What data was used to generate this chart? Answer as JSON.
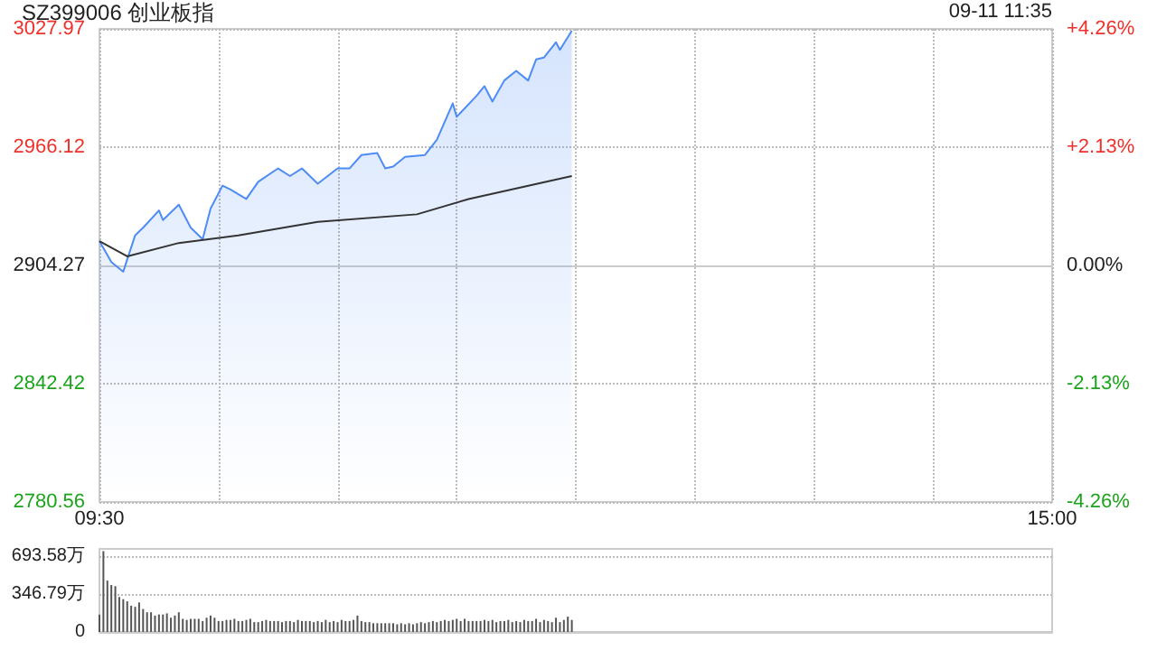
{
  "chart_data": [
    {
      "type": "area",
      "title": "SZ399006 创业板指",
      "annotations": [
        "09-11 11:35"
      ],
      "categories": [
        "09:30",
        null,
        null,
        null,
        null,
        null,
        null,
        null,
        null,
        null,
        null,
        null,
        null,
        null,
        null,
        null,
        null,
        null,
        null,
        null,
        null,
        null,
        null,
        null,
        null,
        null,
        null,
        null,
        null,
        null,
        null,
        null,
        null,
        null,
        null,
        null,
        null,
        null,
        null,
        null,
        null,
        null,
        null,
        null,
        null,
        null,
        null,
        null,
        null,
        null,
        null,
        null,
        null,
        null,
        null,
        null,
        null,
        null,
        null,
        null,
        null,
        null,
        null,
        null,
        null,
        null,
        null,
        null,
        null,
        null,
        null,
        null,
        null,
        null,
        null,
        null,
        null,
        null,
        null,
        null,
        null,
        null,
        null,
        null,
        null,
        null,
        null,
        null,
        null,
        null,
        null,
        null,
        null,
        null,
        null,
        null,
        null,
        null,
        null,
        null,
        null,
        null,
        null,
        null,
        null,
        null,
        null,
        null,
        null,
        null,
        null,
        null,
        null,
        null,
        null,
        null,
        null,
        null,
        null,
        null,
        null,
        null,
        null,
        null,
        null,
        null,
        null,
        null,
        null,
        null,
        null,
        null,
        null,
        null,
        null,
        null,
        null,
        null,
        null,
        null,
        null,
        null,
        null,
        null,
        null,
        null,
        null,
        null,
        null,
        null,
        null,
        null,
        null,
        null,
        null,
        null,
        null,
        null,
        null,
        null,
        null,
        null,
        null,
        null,
        null,
        null,
        null,
        null,
        null,
        null,
        null,
        null,
        null,
        null,
        null,
        null,
        null,
        null,
        null,
        null,
        null,
        null,
        null,
        null,
        null,
        null,
        null,
        null,
        null,
        null,
        null,
        null,
        null,
        null,
        null,
        null,
        null,
        null,
        null,
        null,
        null,
        null,
        null,
        null,
        null,
        null,
        null,
        null,
        null,
        null,
        null,
        null,
        null,
        null,
        null,
        null,
        null,
        null,
        null,
        null,
        null,
        null,
        null,
        null,
        null,
        null,
        null,
        null,
        null,
        null,
        null,
        null,
        null,
        null,
        null,
        null,
        null,
        null,
        null,
        null,
        "15:00"
      ],
      "ylim": [
        2780.56,
        3027.97
      ],
      "yticks": [
        2780.56,
        2842.42,
        2904.27,
        2966.12,
        3027.97
      ],
      "y2lim": [
        -4.26,
        4.26
      ],
      "y2ticks": [
        {
          "value": -4.26,
          "label": "-4.26%"
        },
        {
          "value": -2.13,
          "label": "-2.13%"
        },
        {
          "value": 0,
          "label": "0.00%"
        },
        {
          "value": 2.13,
          "label": "+2.13%"
        },
        {
          "value": 4.26,
          "label": "+4.26%"
        }
      ],
      "grid": true,
      "marker": "none",
      "series": [
        {
          "color": "#4d8cf5",
          "values": [
            2917,
            null,
            null,
            2906,
            null,
            null,
            2901,
            null,
            null,
            2920,
            null,
            2924,
            null,
            null,
            null,
            2933,
            2928,
            null,
            null,
            null,
            2936,
            null,
            null,
            2924,
            null,
            null,
            2918,
            null,
            2934,
            null,
            null,
            2946,
            null,
            2944,
            null,
            null,
            null,
            2939,
            null,
            null,
            2948,
            null,
            null,
            null,
            null,
            2955,
            null,
            null,
            2951,
            null,
            null,
            2955,
            null,
            null,
            null,
            2947,
            null,
            null,
            null,
            null,
            2955,
            null,
            null,
            2955,
            null,
            null,
            2962,
            null,
            null,
            null,
            2963,
            null,
            2955,
            null,
            2956,
            null,
            null,
            2961,
            null,
            null,
            null,
            null,
            2962,
            null,
            null,
            2970,
            null,
            null,
            null,
            2989,
            2982,
            null,
            null,
            null,
            null,
            2993,
            null,
            2998,
            null,
            2990,
            null,
            null,
            3001,
            null,
            null,
            3006,
            null,
            null,
            3001,
            null,
            3012,
            null,
            3013,
            null,
            null,
            3021,
            3017,
            null,
            null,
            3027,
            null,
            null,
            null,
            null,
            null,
            null,
            null,
            null,
            null,
            null,
            null,
            null,
            null,
            null,
            null,
            null,
            null,
            null,
            null,
            null,
            null,
            null,
            null,
            null,
            null,
            null,
            null,
            null,
            null,
            null,
            null,
            null,
            null,
            null,
            null,
            null,
            null,
            null,
            null,
            null,
            null,
            null,
            null,
            null,
            null,
            null,
            null,
            null,
            null,
            null,
            null,
            null,
            null,
            null,
            null,
            null,
            null,
            null,
            null,
            null,
            null,
            null,
            null,
            null,
            null,
            null,
            null,
            null,
            null,
            null,
            null,
            null,
            null,
            null,
            null,
            null,
            null,
            null,
            null,
            null,
            null,
            null,
            null,
            null,
            null,
            null,
            null,
            null,
            null,
            null,
            null,
            null,
            null,
            null,
            null,
            null,
            null,
            null,
            null,
            null,
            null,
            null,
            null,
            null,
            null,
            null,
            null,
            null,
            null,
            null,
            null,
            null,
            null,
            null,
            null,
            null,
            null,
            null,
            null,
            null,
            null
          ]
        },
        {
          "type": "line",
          "color": "#333333",
          "values": [
            2917,
            null,
            null,
            null,
            null,
            null,
            null,
            2909,
            null,
            null,
            null,
            null,
            null,
            null,
            null,
            null,
            null,
            null,
            null,
            null,
            2916,
            null,
            null,
            null,
            null,
            null,
            null,
            null,
            null,
            null,
            null,
            null,
            null,
            null,
            null,
            2920,
            null,
            null,
            null,
            null,
            null,
            null,
            null,
            null,
            null,
            null,
            null,
            null,
            null,
            null,
            null,
            null,
            null,
            null,
            null,
            2927,
            null,
            null,
            null,
            null,
            null,
            null,
            null,
            null,
            null,
            null,
            null,
            null,
            null,
            null,
            null,
            null,
            null,
            null,
            null,
            null,
            null,
            null,
            null,
            null,
            2931,
            null,
            null,
            null,
            null,
            null,
            null,
            null,
            null,
            null,
            null,
            null,
            null,
            2939,
            null,
            null,
            null,
            null,
            null,
            null,
            null,
            null,
            null,
            null,
            null,
            null,
            null,
            null,
            null,
            null,
            null,
            null,
            null,
            null,
            null,
            null,
            null,
            null,
            null,
            2951,
            null,
            null,
            null,
            null,
            null,
            null,
            null,
            null,
            null,
            null,
            null,
            null,
            null,
            null,
            null,
            null,
            null,
            null,
            null,
            null,
            null,
            null,
            null,
            null,
            null,
            null,
            null,
            null,
            null,
            null,
            null,
            null,
            null,
            null,
            null,
            null,
            null,
            null,
            null,
            null,
            null,
            null,
            null,
            null,
            null,
            null,
            null,
            null,
            null,
            null,
            null,
            null,
            null,
            null,
            null,
            null,
            null,
            null,
            null,
            null,
            null,
            null,
            null,
            null,
            null,
            null,
            null,
            null,
            null,
            null,
            null,
            null,
            null,
            null,
            null,
            null,
            null,
            null,
            null,
            null,
            null,
            null,
            null,
            null,
            null,
            null,
            null,
            null,
            null,
            null,
            null,
            null,
            null,
            null,
            null,
            null,
            null,
            null,
            null,
            null,
            null,
            null,
            null,
            null,
            null,
            null,
            null,
            null,
            null,
            null,
            null,
            null,
            null,
            null,
            null,
            null,
            null,
            null,
            null,
            null,
            null
          ]
        }
      ]
    },
    {
      "type": "bar",
      "categories": [
        null,
        null,
        null,
        null,
        null,
        null,
        null,
        null,
        null,
        null,
        null,
        null,
        null,
        null,
        null,
        null,
        null,
        null,
        null,
        null,
        null,
        null,
        null,
        null,
        null,
        null,
        null,
        null,
        null,
        null,
        null,
        null,
        null,
        null,
        null,
        null,
        null,
        null,
        null,
        null,
        null,
        null,
        null,
        null,
        null,
        null,
        null,
        null,
        null,
        null,
        null,
        null,
        null,
        null,
        null,
        null,
        null,
        null,
        null,
        null,
        null,
        null,
        null,
        null,
        null,
        null,
        null,
        null,
        null,
        null,
        null,
        null,
        null,
        null,
        null,
        null,
        null,
        null,
        null,
        null,
        null,
        null,
        null,
        null,
        null,
        null,
        null,
        null,
        null,
        null,
        null,
        null,
        null,
        null,
        null,
        null,
        null,
        null,
        null,
        null,
        null,
        null,
        null,
        null,
        null,
        null,
        null,
        null,
        null,
        null,
        null,
        null,
        null,
        null,
        null,
        null,
        null,
        null,
        null,
        null,
        null,
        null,
        null,
        null,
        null,
        null,
        null,
        null,
        null,
        null,
        null,
        null,
        null,
        null,
        null,
        null,
        null,
        null,
        null,
        null,
        null,
        null,
        null,
        null,
        null,
        null,
        null,
        null,
        null,
        null,
        null,
        null,
        null,
        null,
        null,
        null,
        null,
        null,
        null,
        null,
        null,
        null,
        null,
        null,
        null,
        null,
        null,
        null,
        null,
        null,
        null,
        null,
        null,
        null,
        null,
        null,
        null,
        null,
        null,
        null,
        null,
        null,
        null,
        null,
        null,
        null,
        null,
        null,
        null,
        null,
        null,
        null,
        null,
        null,
        null,
        null,
        null,
        null,
        null,
        null,
        null,
        null,
        null,
        null,
        null,
        null,
        null,
        null,
        null,
        null,
        null,
        null,
        null,
        null,
        null,
        null,
        null,
        null,
        null,
        null,
        null,
        null,
        null,
        null,
        null,
        null,
        null,
        null,
        null,
        null,
        null,
        null,
        null,
        null,
        null,
        null,
        null,
        null,
        null,
        null,
        null
      ],
      "ylim": [
        0,
        760
      ],
      "yticks": [
        0,
        {
          "value": 346.79,
          "label": "346.79万"
        },
        {
          "value": 693.58,
          "label": "693.58万"
        }
      ],
      "grid": "y",
      "tick_labels": "y",
      "series": [
        {
          "color": "#555555",
          "values": [
            160,
            740,
            470,
            430,
            420,
            320,
            300,
            280,
            240,
            230,
            270,
            210,
            180,
            180,
            150,
            160,
            160,
            170,
            130,
            150,
            180,
            120,
            110,
            120,
            120,
            120,
            100,
            130,
            150,
            130,
            100,
            100,
            110,
            110,
            120,
            100,
            100,
            110,
            120,
            90,
            90,
            100,
            110,
            100,
            100,
            100,
            90,
            100,
            100,
            90,
            110,
            100,
            100,
            100,
            90,
            100,
            90,
            110,
            90,
            100,
            90,
            110,
            100,
            100,
            110,
            150,
            100,
            90,
            90,
            80,
            80,
            80,
            80,
            80,
            80,
            70,
            80,
            70,
            80,
            70,
            80,
            90,
            80,
            90,
            100,
            90,
            100,
            110,
            100,
            110,
            120,
            100,
            120,
            100,
            100,
            100,
            100,
            110,
            100,
            110,
            90,
            100,
            100,
            110,
            90,
            100,
            90,
            110,
            100,
            100,
            120,
            90,
            110,
            100,
            90,
            130,
            90,
            110,
            140,
            110,
            null,
            null,
            null,
            null,
            null,
            null,
            null,
            null,
            null,
            null,
            null,
            null,
            null,
            null,
            null,
            null,
            null,
            null,
            null,
            null,
            null,
            null,
            null,
            null,
            null,
            null,
            null,
            null,
            null,
            null,
            null,
            null,
            null,
            null,
            null,
            null,
            null,
            null,
            null,
            null,
            null,
            null,
            null,
            null,
            null,
            null,
            null,
            null,
            null,
            null,
            null,
            null,
            null,
            null,
            null,
            null,
            null,
            null,
            null,
            null,
            null,
            null,
            null,
            null,
            null,
            null,
            null,
            null,
            null,
            null,
            null,
            null,
            null,
            null,
            null,
            null,
            null,
            null,
            null,
            null,
            null,
            null,
            null,
            null,
            null,
            null,
            null,
            null,
            null,
            null,
            null,
            null,
            null,
            null,
            null,
            null,
            null,
            null,
            null,
            null,
            null,
            null,
            null,
            null,
            null,
            null,
            null,
            null,
            null,
            null,
            null,
            null,
            null,
            null,
            null,
            null,
            null,
            null,
            null,
            null,
            null
          ]
        }
      ]
    }
  ]
}
